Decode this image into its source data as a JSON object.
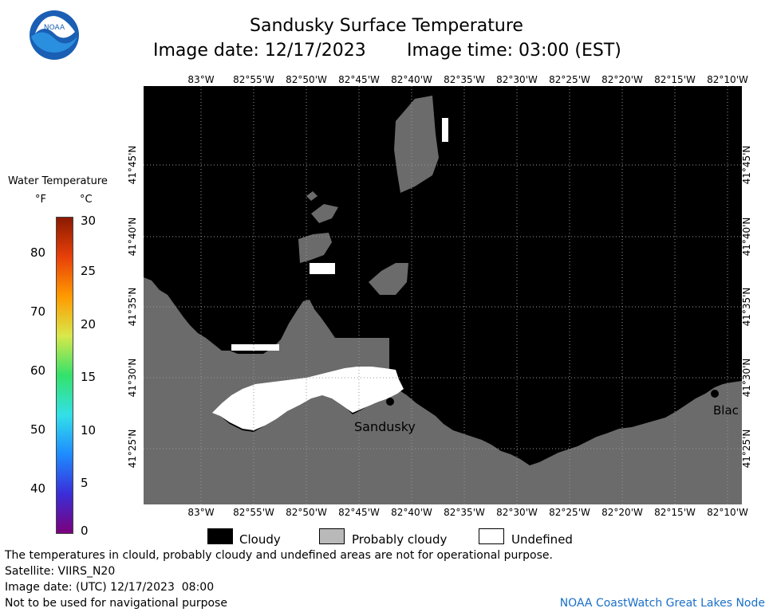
{
  "header": {
    "title": "Sandusky Surface Temperature",
    "image_date": "Image date: 12/17/2023",
    "image_time": "Image time: 03:00 (EST)"
  },
  "logo": {
    "text": "NOAA"
  },
  "map": {
    "lon_labels": [
      "83°W",
      "82°55'W",
      "82°50'W",
      "82°45'W",
      "82°40'W",
      "82°35'W",
      "82°30'W",
      "82°25'W",
      "82°20'W",
      "82°15'W",
      "82°10'W"
    ],
    "lat_labels": [
      "41°45'N",
      "41°40'N",
      "41°35'N",
      "41°30'N",
      "41°25'N"
    ],
    "places": {
      "sandusky": "Sandusky",
      "east": "Blac"
    },
    "colors": {
      "cloudy": "#000000",
      "probably_cloudy": "#6b6b6b",
      "undefined": "#ffffff",
      "grid": "#999999"
    }
  },
  "colorbar": {
    "title": "Water Temperature",
    "unit_f": "°F",
    "unit_c": "°C",
    "f_ticks": [
      "40",
      "50",
      "60",
      "70",
      "80"
    ],
    "c_ticks": [
      "0",
      "5",
      "10",
      "15",
      "20",
      "25",
      "30"
    ],
    "colors": [
      "#7b007b",
      "#3a2ed8",
      "#1e8cff",
      "#33e0e8",
      "#33e26a",
      "#d8e84a",
      "#ff9a00",
      "#e8400a",
      "#8b1a00"
    ]
  },
  "legend": {
    "cloudy": "Cloudy",
    "probably_cloudy": "Probably cloudy",
    "undefined": "Undefined"
  },
  "footer": {
    "disclaimer": "The temperatures in clould, probably cloudy and undefined areas are not for operational purpose.",
    "satellite": "Satellite: VIIRS_N20",
    "utc_date": "Image date: (UTC) 12/17/2023  08:00",
    "navigation": "Not to be used for navigational purpose",
    "credit": "NOAA CoastWatch Great Lakes Node"
  }
}
